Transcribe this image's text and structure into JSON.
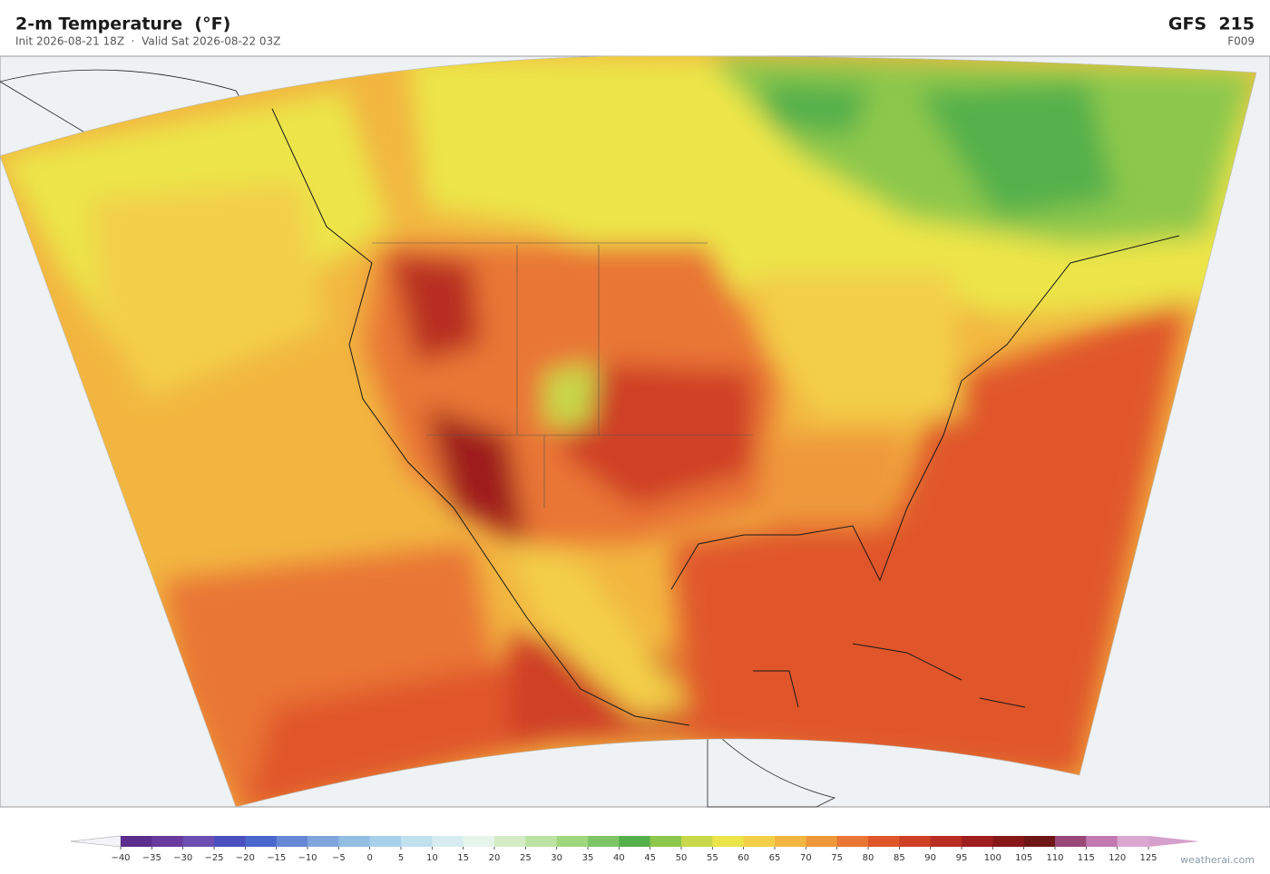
{
  "header": {
    "title": "2-m Temperature  (°F)",
    "subtitle": "Init 2026-08-21 18Z  ·  Valid Sat 2026-08-22 03Z",
    "model": "GFS  215",
    "forecast_hour": "F009"
  },
  "colorbar": {
    "ticks": [
      {
        "value": -40,
        "label": "−40"
      },
      {
        "value": -35,
        "label": "−35"
      },
      {
        "value": -30,
        "label": "−30"
      },
      {
        "value": -25,
        "label": "−25"
      },
      {
        "value": -20,
        "label": "−20"
      },
      {
        "value": -15,
        "label": "−15"
      },
      {
        "value": -10,
        "label": "−10"
      },
      {
        "value": -5,
        "label": "−5"
      },
      0,
      5,
      10,
      15,
      20,
      25,
      30,
      35,
      40,
      45,
      50,
      55,
      60,
      65,
      70,
      75,
      80,
      85,
      90,
      95,
      100,
      105,
      110,
      115,
      120,
      125
    ],
    "colors": [
      "#5b2d8e",
      "#6a3a9e",
      "#6c4fb0",
      "#4a4fc0",
      "#4a68cc",
      "#6688d4",
      "#7fa5dc",
      "#92bde2",
      "#a8d0e8",
      "#c0e0ee",
      "#d6ecf0",
      "#e6f4ec",
      "#d4ecc4",
      "#bce3a2",
      "#9fd67e",
      "#7dc566",
      "#55b04c",
      "#8dc84c",
      "#c8d84a",
      "#ece54a",
      "#f3cf48",
      "#f2b640",
      "#ef983a",
      "#e97634",
      "#e0562b",
      "#cf4126",
      "#b82e22",
      "#9e1f1e",
      "#861818",
      "#6e1616",
      "#9a4878",
      "#c27ab0",
      "#dba7d0"
    ],
    "under_color": "#f4f4f8",
    "over_color": "#d6a0cc"
  },
  "credit": "weatherai.com"
}
